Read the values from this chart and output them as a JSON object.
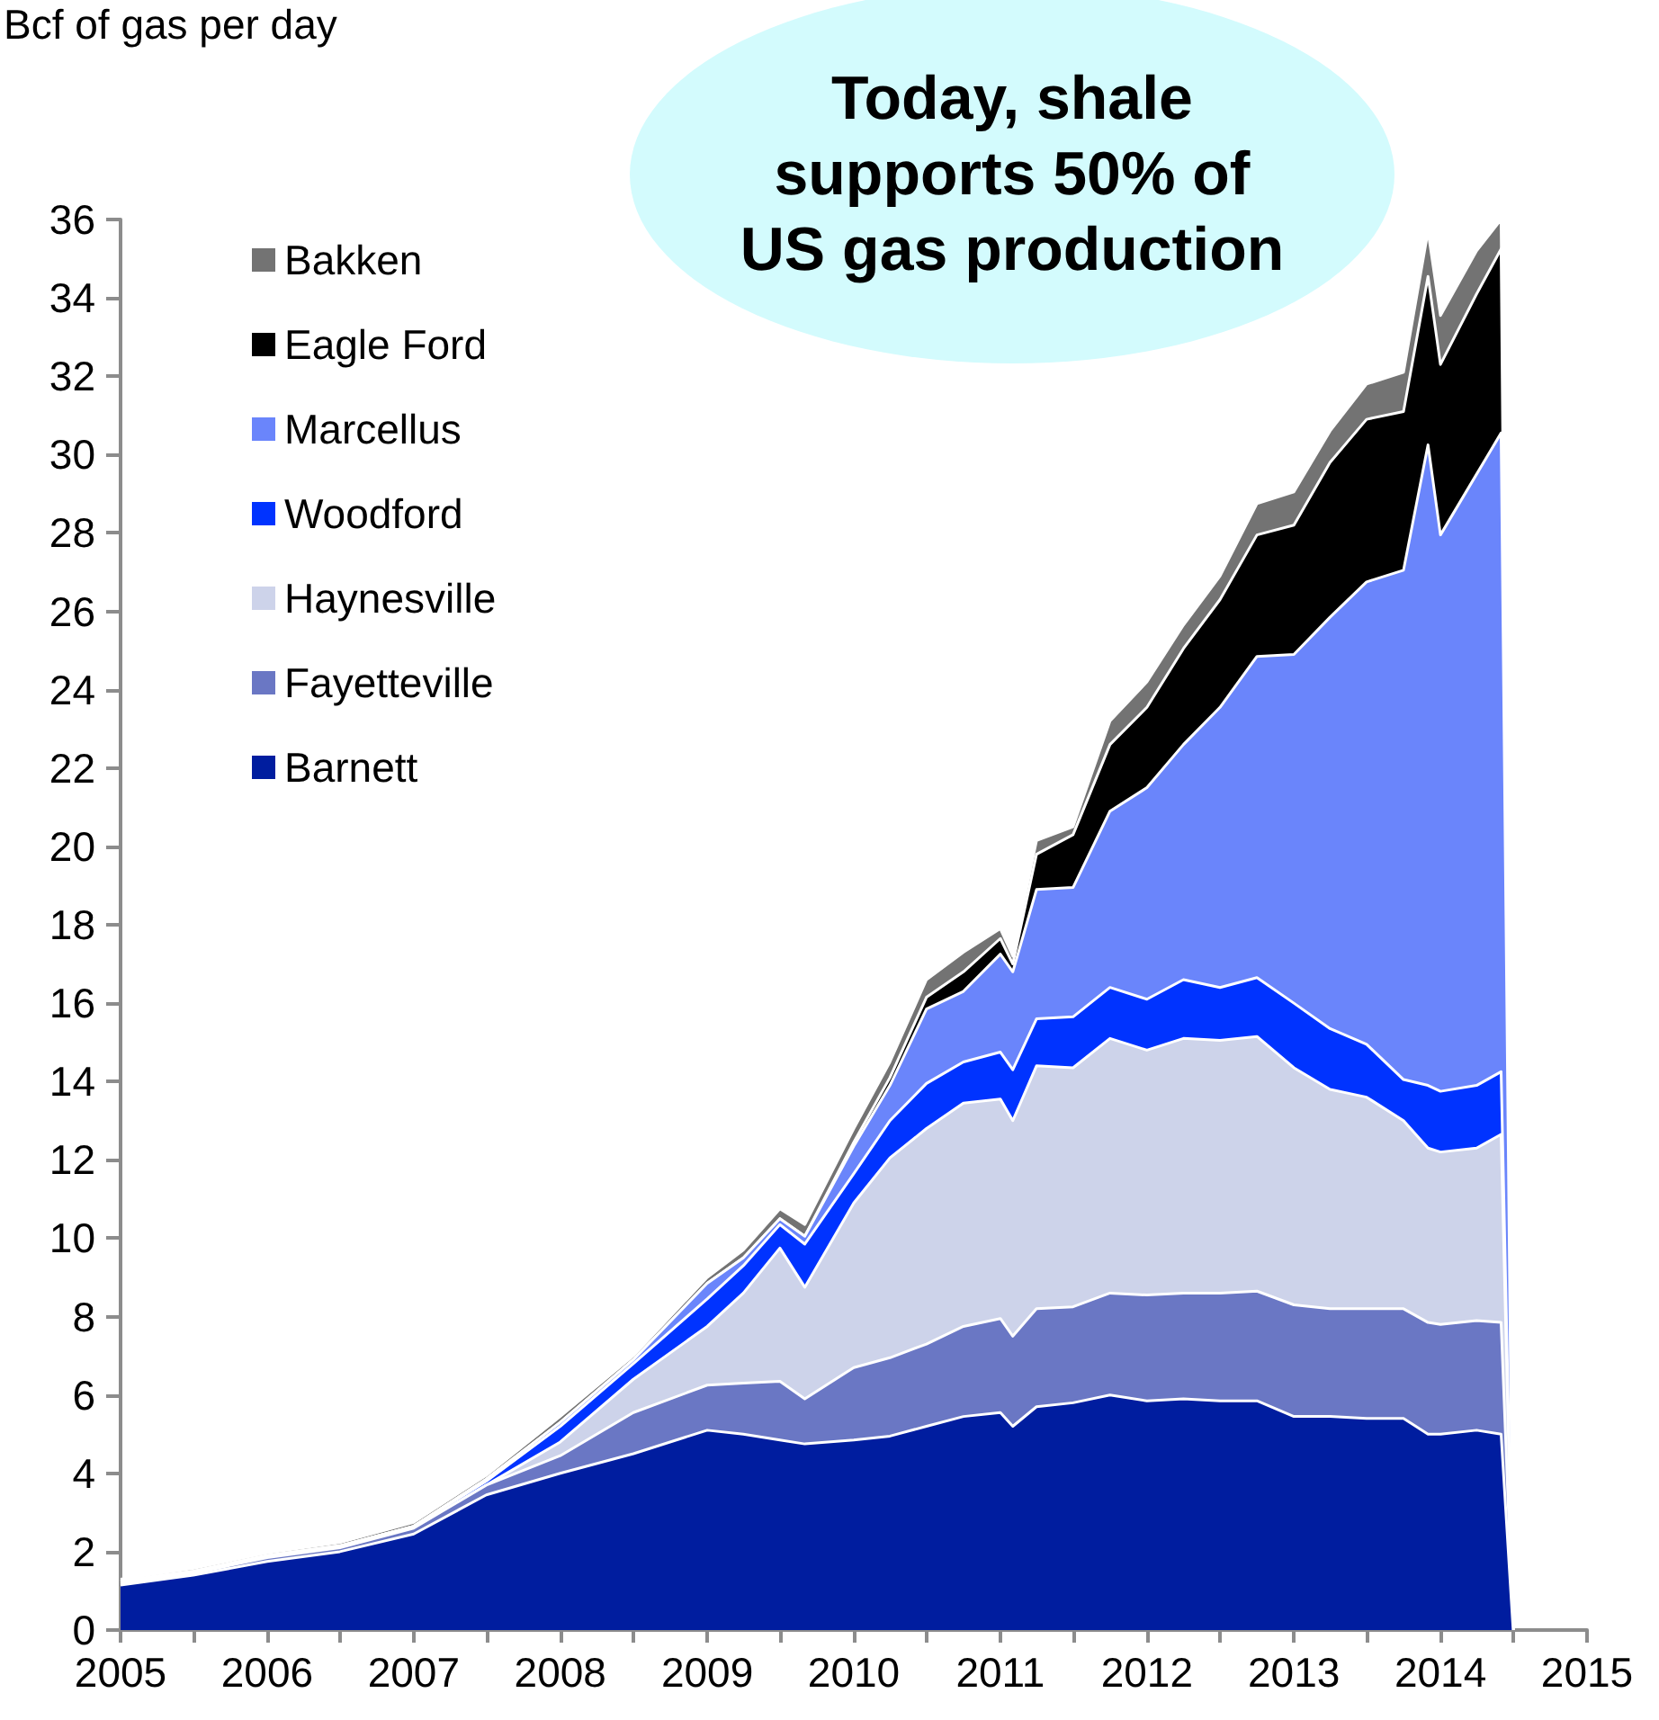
{
  "chart_data": {
    "type": "area",
    "stacked": true,
    "ylabel": "Bcf of gas per day",
    "annotations": [
      "Today, shale supports 50% of US gas production"
    ],
    "x": [
      "2005-01",
      "2005-07",
      "2006-01",
      "2006-07",
      "2007-01",
      "2007-07",
      "2008-01",
      "2008-07",
      "2009-01",
      "2009-04",
      "2009-07",
      "2009-09",
      "2010-01",
      "2010-04",
      "2010-07",
      "2010-10",
      "2011-01",
      "2011-02",
      "2011-04",
      "2011-07",
      "2011-10",
      "2012-01",
      "2012-04",
      "2012-07",
      "2012-10",
      "2013-01",
      "2013-04",
      "2013-07",
      "2013-10",
      "2013-12",
      "2014-01",
      "2014-04",
      "2014-06",
      "2014-07"
    ],
    "series": [
      {
        "name": "Barnett",
        "color": "#001d9f",
        "values": [
          1.15,
          1.4,
          1.75,
          2.0,
          2.45,
          3.45,
          4.0,
          4.5,
          5.1,
          5.0,
          4.85,
          4.75,
          4.85,
          4.95,
          5.2,
          5.45,
          5.55,
          5.2,
          5.7,
          5.8,
          6.0,
          5.85,
          5.9,
          5.85,
          5.85,
          5.45,
          5.45,
          5.4,
          5.4,
          5.0,
          5.0,
          5.1,
          5.0,
          0
        ]
      },
      {
        "name": "Fayetteville",
        "color": "#6a77c4",
        "values": [
          0.05,
          0.05,
          0.1,
          0.1,
          0.15,
          0.25,
          0.45,
          1.05,
          1.15,
          1.3,
          1.5,
          1.15,
          1.85,
          2.0,
          2.1,
          2.3,
          2.4,
          2.3,
          2.5,
          2.45,
          2.6,
          2.7,
          2.7,
          2.75,
          2.8,
          2.85,
          2.75,
          2.8,
          2.8,
          2.85,
          2.8,
          2.8,
          2.85,
          0
        ]
      },
      {
        "name": "Haynesville",
        "color": "#cdd3ea",
        "values": [
          0,
          0,
          0,
          0,
          0,
          0,
          0.35,
          0.85,
          1.5,
          2.3,
          3.4,
          2.85,
          4.2,
          5.1,
          5.5,
          5.7,
          5.6,
          5.5,
          6.2,
          6.1,
          6.5,
          6.25,
          6.5,
          6.45,
          6.5,
          6.05,
          5.6,
          5.4,
          4.8,
          4.45,
          4.4,
          4.4,
          4.8,
          0
        ]
      },
      {
        "name": "Woodford",
        "color": "#0033ff",
        "values": [
          0.05,
          0.05,
          0.05,
          0.05,
          0.05,
          0.1,
          0.4,
          0.4,
          0.7,
          0.7,
          0.6,
          1.1,
          0.75,
          0.95,
          1.15,
          1.05,
          1.2,
          1.3,
          1.2,
          1.3,
          1.3,
          1.3,
          1.5,
          1.35,
          1.5,
          1.65,
          1.55,
          1.35,
          1.05,
          1.6,
          1.55,
          1.6,
          1.6,
          0
        ]
      },
      {
        "name": "Marcellus",
        "color": "#6a85fb",
        "values": [
          0,
          0,
          0,
          0,
          0,
          0.05,
          0.1,
          0.1,
          0.4,
          0.2,
          0.15,
          0.2,
          0.7,
          0.9,
          1.9,
          1.8,
          2.5,
          2.5,
          3.3,
          3.3,
          4.5,
          5.4,
          6.0,
          7.15,
          8.2,
          8.9,
          10.5,
          11.8,
          13.0,
          16.35,
          14.2,
          15.6,
          16.3,
          0
        ]
      },
      {
        "name": "Eagle Ford",
        "color": "#000000",
        "values": [
          0,
          0,
          0,
          0,
          0,
          0,
          0,
          0,
          0,
          0,
          0,
          0,
          0.1,
          0.2,
          0.3,
          0.5,
          0.4,
          0.2,
          0.9,
          1.35,
          1.7,
          2.05,
          2.45,
          2.75,
          3.1,
          3.3,
          3.95,
          4.15,
          4.05,
          4.3,
          4.35,
          4.6,
          4.7,
          0
        ]
      },
      {
        "name": "Bakken",
        "color": "#737373",
        "values": [
          0.05,
          0.07,
          0.07,
          0.08,
          0.1,
          0.1,
          0.15,
          0.1,
          0.15,
          0.2,
          0.25,
          0.3,
          0.35,
          0.4,
          0.45,
          0.5,
          0.25,
          0.2,
          0.35,
          0.2,
          0.6,
          0.65,
          0.6,
          0.6,
          0.8,
          0.85,
          0.8,
          0.9,
          1.0,
          1.15,
          1.25,
          1.1,
          0.75,
          0
        ]
      }
    ],
    "xlim": [
      "2005",
      "2015"
    ],
    "xticks": [
      {
        "value": "2005",
        "label": "2005"
      },
      {
        "value": "2005-07",
        "label": null
      },
      {
        "value": "2006",
        "label": "2006"
      },
      {
        "value": "2006-07",
        "label": null
      },
      {
        "value": "2007",
        "label": "2007"
      },
      {
        "value": "2007-07",
        "label": null
      },
      {
        "value": "2008",
        "label": "2008"
      },
      {
        "value": "2008-07",
        "label": null
      },
      {
        "value": "2009",
        "label": "2009"
      },
      {
        "value": "2009-07",
        "label": null
      },
      {
        "value": "2010",
        "label": "2010"
      },
      {
        "value": "2010-07",
        "label": null
      },
      {
        "value": "2011",
        "label": "2011"
      },
      {
        "value": "2011-07",
        "label": null
      },
      {
        "value": "2012",
        "label": "2012"
      },
      {
        "value": "2012-07",
        "label": null
      },
      {
        "value": "2013",
        "label": "2013"
      },
      {
        "value": "2013-07",
        "label": null
      },
      {
        "value": "2014",
        "label": "2014"
      },
      {
        "value": "2014-07",
        "label": null
      },
      {
        "value": "2015",
        "label": "2015"
      }
    ],
    "ylim": [
      0,
      36
    ],
    "yticks": [
      0,
      2,
      4,
      6,
      8,
      10,
      12,
      14,
      16,
      18,
      20,
      22,
      24,
      26,
      28,
      30,
      32,
      34,
      36
    ],
    "grid": false,
    "legend": "top left",
    "marker": "none"
  }
}
